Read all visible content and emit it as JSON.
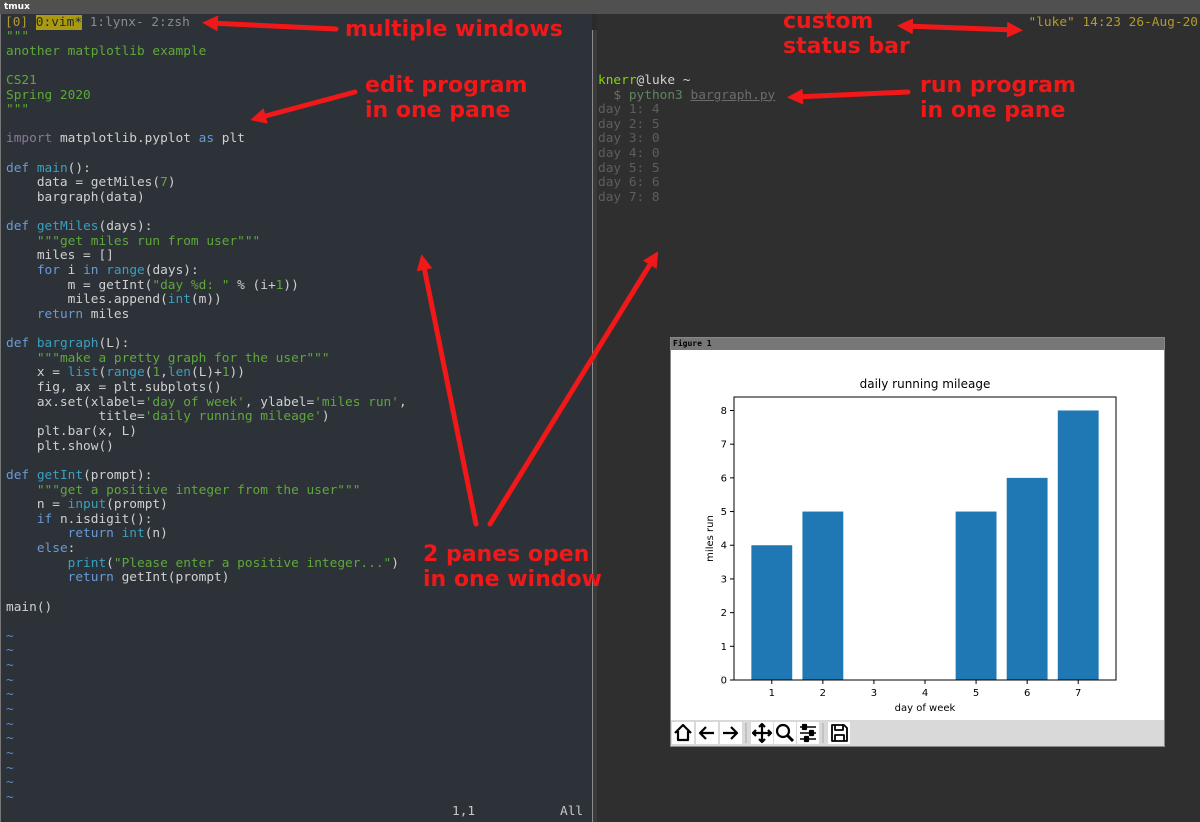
{
  "window_title": "tmux",
  "status_bar": {
    "left": [
      {
        "text": "[0]",
        "color": "#b39a2a"
      },
      {
        "text": "0:vim*",
        "color": "#2a2a2a",
        "background": "#a99a12"
      },
      {
        "text": "1:lynx-",
        "color": "#8c8c8c"
      },
      {
        "text": "2:zsh",
        "color": "#8c8c8c"
      }
    ],
    "right": {
      "text": "\"luke\" 14:23 26-Aug-20",
      "color": "#b39a2a"
    }
  },
  "editor": {
    "lines": [
      [
        [
          "\"\"\"",
          "#5fa83a"
        ]
      ],
      [
        [
          "another matplotlib example",
          "#5fa83a"
        ]
      ],
      [],
      [
        [
          "CS21",
          "#5fa83a"
        ]
      ],
      [
        [
          "Spring 2020",
          "#5fa83a"
        ]
      ],
      [
        [
          "\"\"\"",
          "#5fa83a"
        ]
      ],
      [],
      [
        [
          "import",
          "#8a789a"
        ],
        [
          " matplotlib.pyplot ",
          "#d0d0d0"
        ],
        [
          "as",
          "#6a9ad8"
        ],
        [
          " plt",
          "#d0d0d0"
        ]
      ],
      [],
      [
        [
          "def",
          "#6a9ad8"
        ],
        [
          " ",
          "#d0d0d0"
        ],
        [
          "main",
          "#3aa0bf"
        ],
        [
          "():",
          "#d0d0d0"
        ]
      ],
      [
        [
          "    data = getMiles(",
          "#d0d0d0"
        ],
        [
          "7",
          "#5fa83a"
        ],
        [
          ")",
          "#d0d0d0"
        ]
      ],
      [
        [
          "    bargraph(data)",
          "#d0d0d0"
        ]
      ],
      [],
      [
        [
          "def",
          "#6a9ad8"
        ],
        [
          " ",
          "#d0d0d0"
        ],
        [
          "getMiles",
          "#3aa0bf"
        ],
        [
          "(days):",
          "#d0d0d0"
        ]
      ],
      [
        [
          "    ",
          "#d0d0d0"
        ],
        [
          "\"\"\"get miles run from user\"\"\"",
          "#5fa83a"
        ]
      ],
      [
        [
          "    miles = []",
          "#d0d0d0"
        ]
      ],
      [
        [
          "    ",
          "#d0d0d0"
        ],
        [
          "for",
          "#6a9ad8"
        ],
        [
          " i ",
          "#d0d0d0"
        ],
        [
          "in",
          "#6a9ad8"
        ],
        [
          " ",
          "#d0d0d0"
        ],
        [
          "range",
          "#3aa0bf"
        ],
        [
          "(days):",
          "#d0d0d0"
        ]
      ],
      [
        [
          "        m = getInt(",
          "#d0d0d0"
        ],
        [
          "\"day %d: \"",
          "#5fa83a"
        ],
        [
          " % (i+",
          "#d0d0d0"
        ],
        [
          "1",
          "#5fa83a"
        ],
        [
          "))",
          "#d0d0d0"
        ]
      ],
      [
        [
          "        miles.append(",
          "#d0d0d0"
        ],
        [
          "int",
          "#3aa0bf"
        ],
        [
          "(m))",
          "#d0d0d0"
        ]
      ],
      [
        [
          "    ",
          "#d0d0d0"
        ],
        [
          "return",
          "#6a9ad8"
        ],
        [
          " miles",
          "#d0d0d0"
        ]
      ],
      [],
      [
        [
          "def",
          "#6a9ad8"
        ],
        [
          " ",
          "#d0d0d0"
        ],
        [
          "bargraph",
          "#3aa0bf"
        ],
        [
          "(L):",
          "#d0d0d0"
        ]
      ],
      [
        [
          "    ",
          "#d0d0d0"
        ],
        [
          "\"\"\"make a pretty graph for the user\"\"\"",
          "#5fa83a"
        ]
      ],
      [
        [
          "    x = ",
          "#d0d0d0"
        ],
        [
          "list",
          "#3aa0bf"
        ],
        [
          "(",
          "#d0d0d0"
        ],
        [
          "range",
          "#3aa0bf"
        ],
        [
          "(",
          "#d0d0d0"
        ],
        [
          "1",
          "#5fa83a"
        ],
        [
          ",",
          "#d0d0d0"
        ],
        [
          "len",
          "#3aa0bf"
        ],
        [
          "(L)+",
          "#d0d0d0"
        ],
        [
          "1",
          "#5fa83a"
        ],
        [
          "))",
          "#d0d0d0"
        ]
      ],
      [
        [
          "    fig, ax = plt.subplots()",
          "#d0d0d0"
        ]
      ],
      [
        [
          "    ax.set(xlabel=",
          "#d0d0d0"
        ],
        [
          "'day of week'",
          "#5fa83a"
        ],
        [
          ", ylabel=",
          "#d0d0d0"
        ],
        [
          "'miles run'",
          "#5fa83a"
        ],
        [
          ",",
          "#d0d0d0"
        ]
      ],
      [
        [
          "            title=",
          "#d0d0d0"
        ],
        [
          "'daily running mileage'",
          "#5fa83a"
        ],
        [
          ")",
          "#d0d0d0"
        ]
      ],
      [
        [
          "    plt.bar(x, L)",
          "#d0d0d0"
        ]
      ],
      [
        [
          "    plt.show()",
          "#d0d0d0"
        ]
      ],
      [],
      [
        [
          "def",
          "#6a9ad8"
        ],
        [
          " ",
          "#d0d0d0"
        ],
        [
          "getInt",
          "#3aa0bf"
        ],
        [
          "(prompt):",
          "#d0d0d0"
        ]
      ],
      [
        [
          "    ",
          "#d0d0d0"
        ],
        [
          "\"\"\"get a positive integer from the user\"\"\"",
          "#5fa83a"
        ]
      ],
      [
        [
          "    n = ",
          "#d0d0d0"
        ],
        [
          "input",
          "#3aa0bf"
        ],
        [
          "(prompt)",
          "#d0d0d0"
        ]
      ],
      [
        [
          "    ",
          "#d0d0d0"
        ],
        [
          "if",
          "#6a9ad8"
        ],
        [
          " n.isdigit():",
          "#d0d0d0"
        ]
      ],
      [
        [
          "        ",
          "#d0d0d0"
        ],
        [
          "return",
          "#6a9ad8"
        ],
        [
          " ",
          "#d0d0d0"
        ],
        [
          "int",
          "#3aa0bf"
        ],
        [
          "(n)",
          "#d0d0d0"
        ]
      ],
      [
        [
          "    ",
          "#d0d0d0"
        ],
        [
          "else",
          "#6a9ad8"
        ],
        [
          ":",
          "#d0d0d0"
        ]
      ],
      [
        [
          "        ",
          "#d0d0d0"
        ],
        [
          "print",
          "#3aa0bf"
        ],
        [
          "(",
          "#d0d0d0"
        ],
        [
          "\"Please enter a positive integer...\"",
          "#5fa83a"
        ],
        [
          ")",
          "#d0d0d0"
        ]
      ],
      [
        [
          "        ",
          "#d0d0d0"
        ],
        [
          "return",
          "#6a9ad8"
        ],
        [
          " getInt(prompt)",
          "#d0d0d0"
        ]
      ],
      [],
      [
        [
          "main()",
          "#d0d0d0"
        ]
      ],
      []
    ],
    "empty_line_marker": "~",
    "ruler": "1,1",
    "position": "All"
  },
  "terminal": {
    "lines": [
      [
        [
          "knerr",
          "#87d700"
        ],
        [
          "@luke",
          "#d0d0d0"
        ],
        [
          " ~",
          "#d0d0d0"
        ]
      ],
      [
        [
          "  $ ",
          "#6c6c6c"
        ],
        [
          "python3",
          "#5f875f"
        ],
        [
          " ",
          "#6c6c6c"
        ],
        [
          "bargraph.py",
          "#6c6c6c",
          true
        ]
      ],
      [
        [
          "day 1: 4",
          "#5e5e5e"
        ]
      ],
      [
        [
          "day 2: 5",
          "#5e5e5e"
        ]
      ],
      [
        [
          "day 3: 0",
          "#5e5e5e"
        ]
      ],
      [
        [
          "day 4: 0",
          "#5e5e5e"
        ]
      ],
      [
        [
          "day 5: 5",
          "#5e5e5e"
        ]
      ],
      [
        [
          "day 6: 6",
          "#5e5e5e"
        ]
      ],
      [
        [
          "day 7: 8",
          "#5e5e5e"
        ]
      ]
    ]
  },
  "annotations": [
    [
      "multiple windows"
    ],
    [
      "custom",
      "status bar"
    ],
    [
      "edit program",
      "in one pane"
    ],
    [
      "run program",
      "in one pane"
    ],
    [
      "2 panes open",
      "in one window"
    ]
  ],
  "figure_title": "Figure 1",
  "chart_data": {
    "type": "bar",
    "title": "daily running mileage",
    "x_label": "day of week",
    "y_label": "miles run",
    "x": [
      1,
      2,
      3,
      4,
      5,
      6,
      7
    ],
    "values": [
      4,
      5,
      0,
      0,
      5,
      6,
      8
    ],
    "bar_width": 0.8,
    "color": "#1f77b4",
    "xlim": [
      0.26,
      7.74
    ],
    "ylim": [
      0,
      8.4
    ],
    "xticks": [
      1,
      2,
      3,
      4,
      5,
      6,
      7
    ],
    "yticks": [
      0,
      1,
      2,
      3,
      4,
      5,
      6,
      7,
      8
    ],
    "grid": false
  }
}
